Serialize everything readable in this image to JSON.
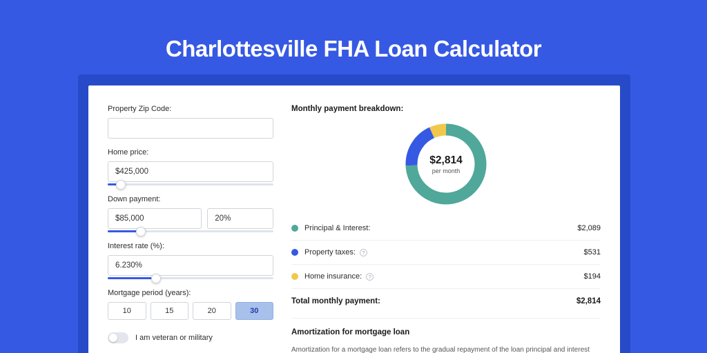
{
  "page": {
    "title": "Charlottesville FHA Loan Calculator",
    "bg_color": "#3659e3",
    "shadow_color": "#274bc8",
    "card_bg": "#ffffff"
  },
  "form": {
    "zip": {
      "label": "Property Zip Code:",
      "value": ""
    },
    "home_price": {
      "label": "Home price:",
      "value": "$425,000",
      "slider_percent": 8
    },
    "down_payment": {
      "label": "Down payment:",
      "amount": "$85,000",
      "percent": "20%",
      "slider_percent": 20
    },
    "interest": {
      "label": "Interest rate (%):",
      "value": "6.230%",
      "slider_percent": 29
    },
    "period": {
      "label": "Mortgage period (years):",
      "options": [
        "10",
        "15",
        "20",
        "30"
      ],
      "selected_index": 3
    },
    "veteran": {
      "label": "I am veteran or military",
      "on": false
    }
  },
  "breakdown": {
    "title": "Monthly payment breakdown:",
    "center_amount": "$2,814",
    "center_sub": "per month",
    "donut": {
      "segments": [
        {
          "key": "principal_interest",
          "value": 2089,
          "color": "#4fa899"
        },
        {
          "key": "property_taxes",
          "value": 531,
          "color": "#3659e3"
        },
        {
          "key": "home_insurance",
          "value": 194,
          "color": "#f2c84b"
        }
      ],
      "stroke_width": 17
    },
    "rows": [
      {
        "dot": "#4fa899",
        "label": "Principal & Interest:",
        "info": false,
        "value": "$2,089"
      },
      {
        "dot": "#3659e3",
        "label": "Property taxes:",
        "info": true,
        "value": "$531"
      },
      {
        "dot": "#f2c84b",
        "label": "Home insurance:",
        "info": true,
        "value": "$194"
      }
    ],
    "total": {
      "label": "Total monthly payment:",
      "value": "$2,814"
    }
  },
  "amortization": {
    "title": "Amortization for mortgage loan",
    "body": "Amortization for a mortgage loan refers to the gradual repayment of the loan principal and interest over a specified"
  }
}
